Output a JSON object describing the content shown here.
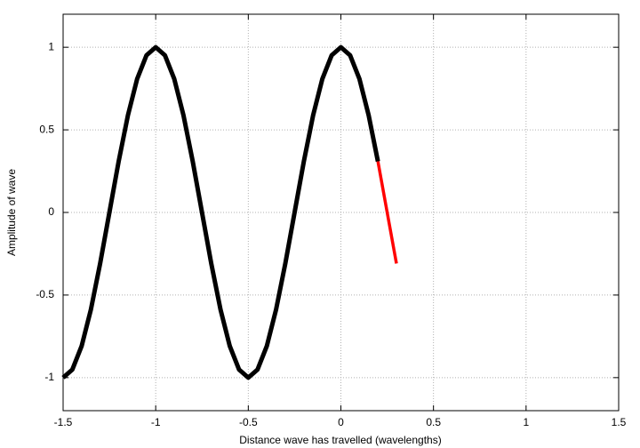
{
  "chart_data": {
    "type": "line",
    "xlabel": "Distance wave has travelled (wavelengths)",
    "ylabel": "Amplitude of wave",
    "xlim": [
      -1.5,
      1.5
    ],
    "ylim": [
      -1.2,
      1.2
    ],
    "xticks": [
      -1.5,
      -1,
      -0.5,
      0,
      0.5,
      1,
      1.5
    ],
    "yticks": [
      -1,
      -0.5,
      0,
      0.5,
      1
    ],
    "grid": true,
    "series": [
      {
        "color": "#000000",
        "x": [
          -1.5,
          -1.45,
          -1.4,
          -1.35,
          -1.3,
          -1.25,
          -1.2,
          -1.15,
          -1.1,
          -1.05,
          -1,
          -0.95,
          -0.9,
          -0.85,
          -0.8,
          -0.75,
          -0.7,
          -0.65,
          -0.6,
          -0.55,
          -0.5,
          -0.45,
          -0.4,
          -0.35,
          -0.3,
          -0.25,
          -0.2,
          -0.15,
          -0.1,
          -0.05,
          0,
          0.05,
          0.1,
          0.15,
          0.2
        ],
        "values": [
          -1,
          -0.951,
          -0.809,
          -0.588,
          -0.309,
          0,
          0.309,
          0.588,
          0.809,
          0.951,
          1,
          0.951,
          0.809,
          0.588,
          0.309,
          0,
          -0.309,
          -0.588,
          -0.809,
          -0.951,
          -1,
          -0.951,
          -0.809,
          -0.588,
          -0.309,
          0,
          0.309,
          0.588,
          0.809,
          0.951,
          1,
          0.951,
          0.809,
          0.588,
          0.309
        ]
      },
      {
        "color": "#ff0000",
        "x": [
          0.2,
          0.3
        ],
        "values": [
          0.309,
          -0.309
        ]
      }
    ]
  }
}
